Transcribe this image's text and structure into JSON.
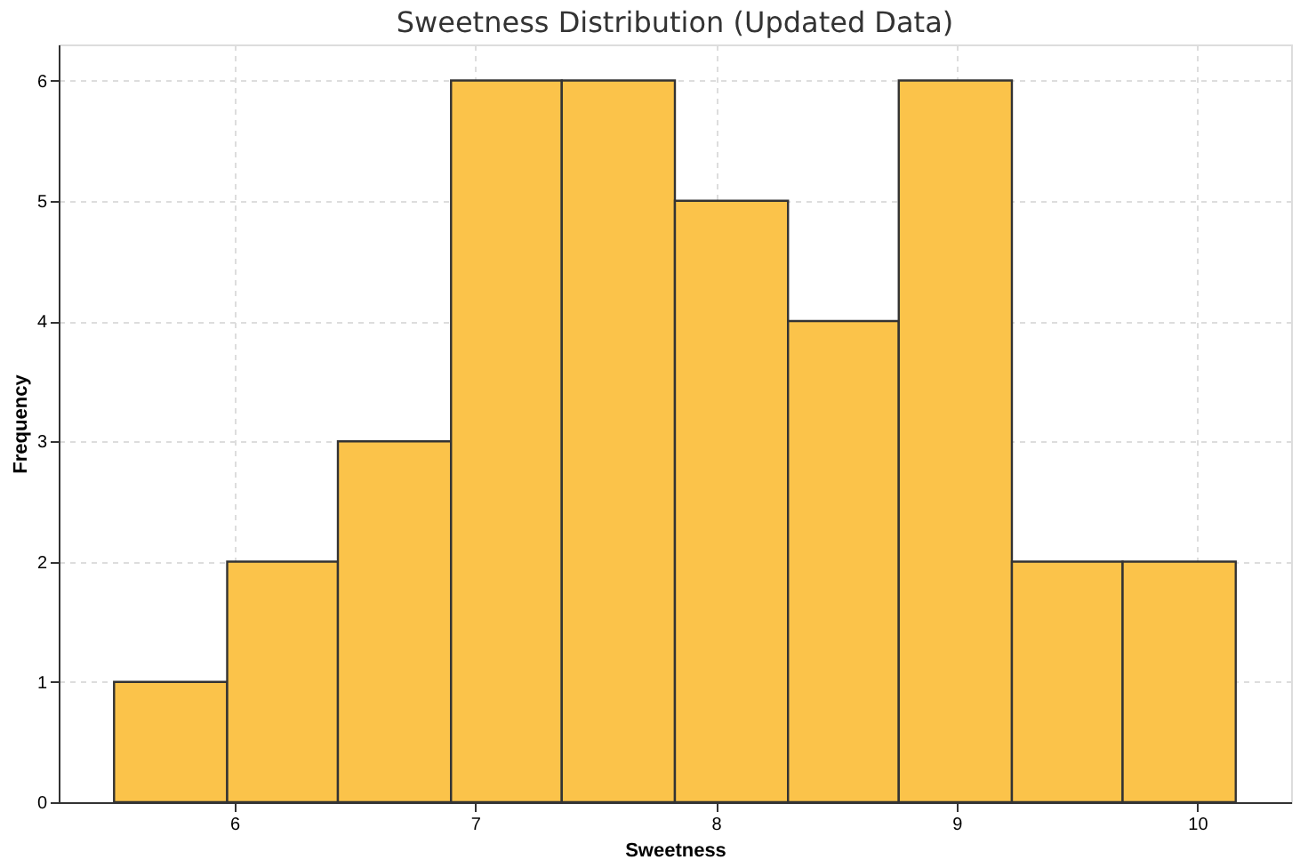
{
  "chart_data": {
    "type": "histogram",
    "title": "Sweetness Distribution (Updated Data)",
    "xlabel": "Sweetness",
    "ylabel": "Frequency",
    "bins": [
      5.5,
      5.97,
      6.43,
      6.9,
      7.36,
      7.83,
      8.3,
      8.76,
      9.23,
      9.69,
      10.16
    ],
    "values": [
      1,
      2,
      3,
      6,
      6,
      5,
      4,
      6,
      2,
      2
    ],
    "color": "#fbc34a",
    "xlim": [
      5.27,
      10.39
    ],
    "xticks": [
      6,
      7,
      8,
      9,
      10
    ],
    "ylim": [
      0,
      6.3
    ],
    "yticks": [
      0,
      1,
      2,
      3,
      4,
      5,
      6
    ],
    "grid": true
  }
}
